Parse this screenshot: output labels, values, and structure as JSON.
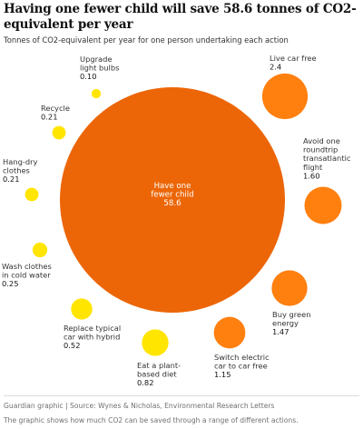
{
  "header": {
    "title": "Having one fewer child will save 58.6 tonnes of CO2-equivalent per year",
    "subtitle": "Tonnes of CO2-equivalent per year for one person undertaking each action"
  },
  "footer": {
    "source": "Guardian graphic | Source: Wynes & Nicholas, Environmental Research Letters",
    "note": "The graphic shows how much CO2 can be saved through a range of different actions."
  },
  "chart_data": {
    "type": "bubble",
    "title": "Having one fewer child will save 58.6 tonnes of CO2-equivalent per year",
    "subtitle": "Tonnes of CO2-equivalent per year for one person undertaking each action",
    "colors": {
      "high_impact": "#ff7f0f",
      "low_impact": "#ffe500",
      "main": "#ec6608"
    },
    "items": [
      {
        "label_lines": [
          "Have one",
          "fewer child"
        ],
        "value": 58.6,
        "value_text": "58.6",
        "color": "#ec6608"
      },
      {
        "label_lines": [
          "Live car free"
        ],
        "value": 2.4,
        "value_text": "2.4",
        "color": "#ff7f0f"
      },
      {
        "label_lines": [
          "Avoid one",
          "roundtrip",
          "transatlantic",
          "flight"
        ],
        "value": 1.6,
        "value_text": "1.60",
        "color": "#ff7f0f"
      },
      {
        "label_lines": [
          "Buy green",
          "energy"
        ],
        "value": 1.47,
        "value_text": "1.47",
        "color": "#ff7f0f"
      },
      {
        "label_lines": [
          "Switch electric",
          "car to car free"
        ],
        "value": 1.15,
        "value_text": "1.15",
        "color": "#ff7f0f"
      },
      {
        "label_lines": [
          "Eat a plant-",
          "based diet"
        ],
        "value": 0.82,
        "value_text": "0.82",
        "color": "#ffe500"
      },
      {
        "label_lines": [
          "Replace typical",
          "car with hybrid"
        ],
        "value": 0.52,
        "value_text": "0.52",
        "color": "#ffe500"
      },
      {
        "label_lines": [
          "Wash clothes",
          "in cold water"
        ],
        "value": 0.25,
        "value_text": "0.25",
        "color": "#ffe500"
      },
      {
        "label_lines": [
          "Hang-dry",
          "clothes"
        ],
        "value": 0.21,
        "value_text": "0.21",
        "color": "#ffe500"
      },
      {
        "label_lines": [
          "Recycle"
        ],
        "value": 0.21,
        "value_text": "0.21",
        "color": "#ffe500"
      },
      {
        "label_lines": [
          "Upgrade",
          "light bulbs"
        ],
        "value": 0.1,
        "value_text": "0.10",
        "color": "#ffe500"
      }
    ]
  }
}
